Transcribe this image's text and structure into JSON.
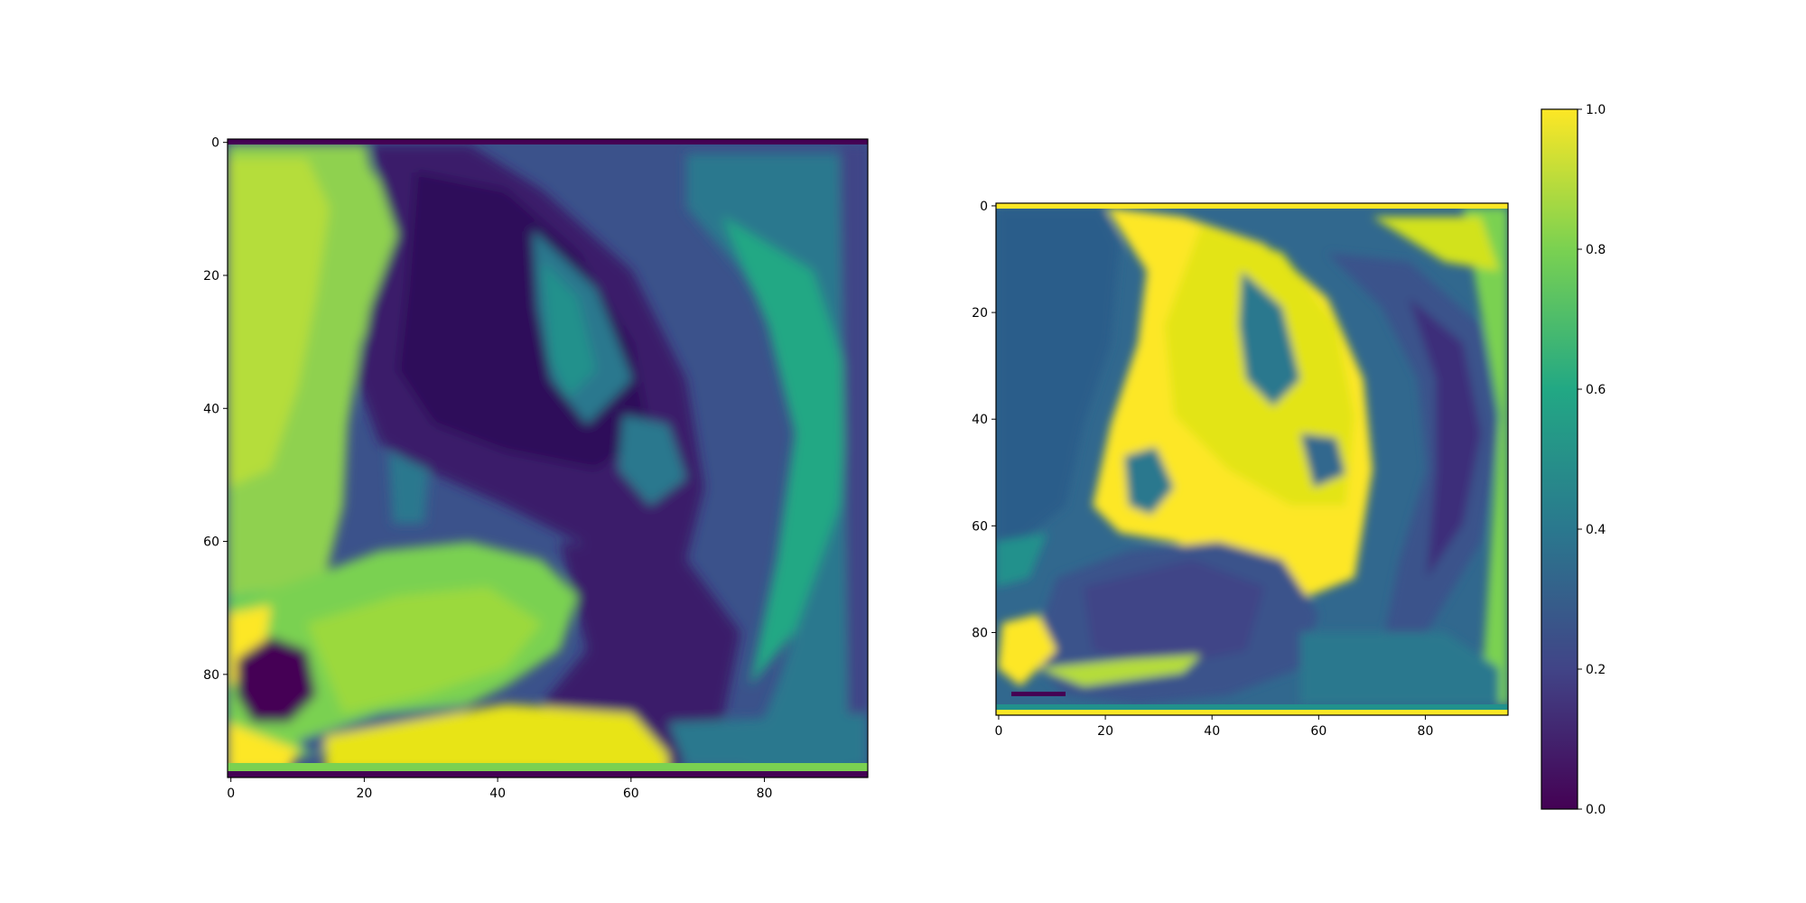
{
  "chart_data": [
    {
      "type": "heatmap",
      "title": "",
      "xlabel": "",
      "ylabel": "",
      "x_ticks": [
        "0",
        "20",
        "40",
        "60",
        "80"
      ],
      "y_ticks": [
        "0",
        "20",
        "40",
        "60",
        "80"
      ],
      "xlim": [
        0,
        96
      ],
      "ylim": [
        96,
        0
      ],
      "image_size": [
        96,
        96
      ],
      "colormap": "viridis",
      "content": "grayscale image of a dog's head in profile (original intensities)"
    },
    {
      "type": "heatmap",
      "title": "",
      "xlabel": "",
      "ylabel": "",
      "x_ticks": [
        "0",
        "20",
        "40",
        "60",
        "80"
      ],
      "y_ticks": [
        "0",
        "20",
        "40",
        "60",
        "80"
      ],
      "xlim": [
        0,
        96
      ],
      "ylim": [
        96,
        0
      ],
      "image_size": [
        96,
        96
      ],
      "colormap": "viridis",
      "content": "processed map of the same dog image with fur/edge regions highlighted"
    }
  ],
  "colorbar": {
    "colormap": "viridis",
    "range": [
      0.0,
      1.0
    ],
    "ticks": [
      "0.0",
      "0.2",
      "0.4",
      "0.6",
      "0.8",
      "1.0"
    ],
    "colors": [
      "#440154",
      "#414487",
      "#2a788e",
      "#22a884",
      "#7ad151",
      "#fde725"
    ]
  }
}
